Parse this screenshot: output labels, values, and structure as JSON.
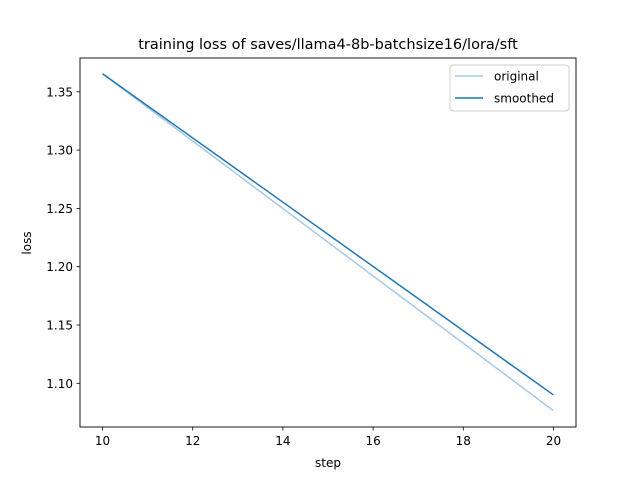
{
  "chart_data": {
    "type": "line",
    "title": "training loss of saves/llama4-8b-batchsize16/lora/sft",
    "xlabel": "step",
    "ylabel": "loss",
    "xlim": [
      9.5,
      20.5
    ],
    "ylim": [
      1.0625,
      1.379
    ],
    "x_ticks": [
      10,
      12,
      14,
      16,
      18,
      20
    ],
    "y_ticks": [
      1.1,
      1.15,
      1.2,
      1.25,
      1.3,
      1.35
    ],
    "grid": false,
    "legend_position": "upper right",
    "series": [
      {
        "name": "original",
        "color": "#a6cae3",
        "x": [
          10,
          20
        ],
        "y": [
          1.3655,
          1.0765
        ]
      },
      {
        "name": "smoothed",
        "color": "#1f77b4",
        "x": [
          10,
          20
        ],
        "y": [
          1.3655,
          1.09
        ]
      }
    ]
  }
}
